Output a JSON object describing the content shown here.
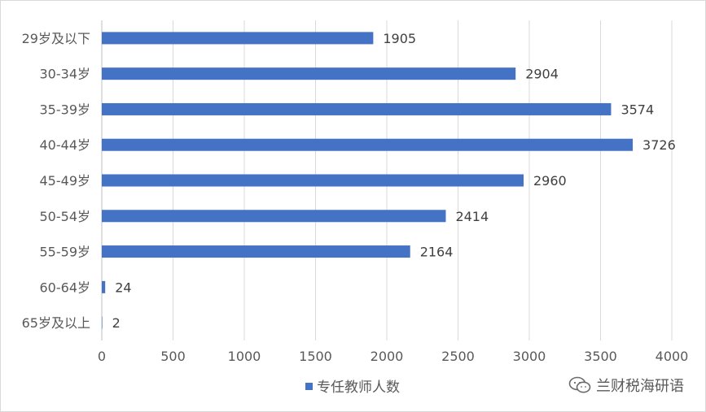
{
  "chart_data": {
    "type": "bar",
    "orientation": "horizontal",
    "categories": [
      "29岁及以下",
      "30-34岁",
      "35-39岁",
      "40-44岁",
      "45-49岁",
      "50-54岁",
      "55-59岁",
      "60-64岁",
      "65岁及以上"
    ],
    "series": [
      {
        "name": "专任教师人数",
        "values": [
          1905,
          2904,
          3574,
          3726,
          2960,
          2414,
          2164,
          24,
          2
        ],
        "color": "#4472c4"
      }
    ],
    "xlim": [
      0,
      4000
    ],
    "xticks": [
      0,
      500,
      1000,
      1500,
      2000,
      2500,
      3000,
      3500,
      4000
    ],
    "grid": "vertical",
    "legend_position": "bottom",
    "title": "",
    "xlabel": "",
    "ylabel": ""
  },
  "watermark": {
    "text": "兰财税海研语",
    "icon": "wechat-icon"
  }
}
